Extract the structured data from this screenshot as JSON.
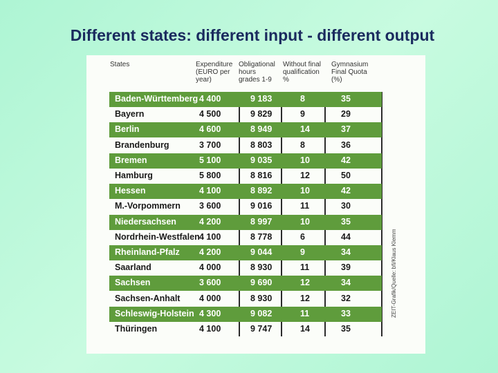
{
  "title": "Different states: different input - different output",
  "table": {
    "header": [
      "States",
      "Expenditure (EURO per year)",
      "Obligational hours grades 1-9",
      "Without final qualification %",
      "Gymnasium Final Quota (%)"
    ],
    "rows": [
      [
        "Baden-Württemberg",
        "4 400",
        "9 183",
        "8",
        "35"
      ],
      [
        "Bayern",
        "4 500",
        "9 829",
        "9",
        "29"
      ],
      [
        "Berlin",
        "4 600",
        "8 949",
        "14",
        "37"
      ],
      [
        "Brandenburg",
        "3 700",
        "8 803",
        "8",
        "36"
      ],
      [
        "Bremen",
        "5 100",
        "9 035",
        "10",
        "42"
      ],
      [
        "Hamburg",
        "5 800",
        "8 816",
        "12",
        "50"
      ],
      [
        "Hessen",
        "4 100",
        "8 892",
        "10",
        "42"
      ],
      [
        "M.-Vorpommern",
        "3 600",
        "9 016",
        "11",
        "30"
      ],
      [
        "Niedersachsen",
        "4 200",
        "8 997",
        "10",
        "35"
      ],
      [
        "Nordrhein-Westfalen",
        "4 100",
        "8 778",
        "6",
        "44"
      ],
      [
        "Rheinland-Pfalz",
        "4 200",
        "9 044",
        "9",
        "34"
      ],
      [
        "Saarland",
        "4 000",
        "8 930",
        "11",
        "39"
      ],
      [
        "Sachsen",
        "3 600",
        "9 690",
        "12",
        "34"
      ],
      [
        "Sachsen-Anhalt",
        "4 000",
        "8 930",
        "12",
        "32"
      ],
      [
        "Schleswig-Holstein",
        "4 300",
        "9 082",
        "11",
        "33"
      ],
      [
        "Thüringen",
        "4 100",
        "9 747",
        "14",
        "35"
      ]
    ],
    "source": "ZEIT-Grafik/Quelle: bfi/Klaus Klemm"
  }
}
